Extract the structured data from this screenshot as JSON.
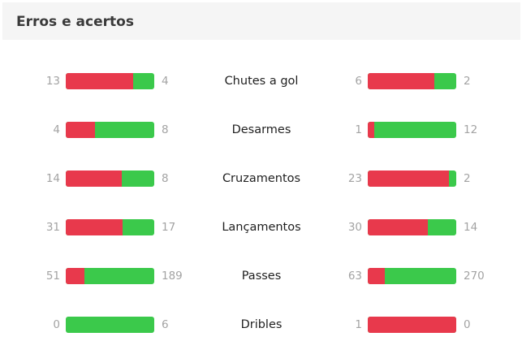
{
  "header": {
    "title": "Erros e acertos"
  },
  "colors": {
    "error": "#e8394c",
    "success": "#3bc94b"
  },
  "stats": [
    {
      "label": "Chutes a gol",
      "left": {
        "errors": "13",
        "hits": "4"
      },
      "right": {
        "errors": "6",
        "hits": "2"
      }
    },
    {
      "label": "Desarmes",
      "left": {
        "errors": "4",
        "hits": "8"
      },
      "right": {
        "errors": "1",
        "hits": "12"
      }
    },
    {
      "label": "Cruzamentos",
      "left": {
        "errors": "14",
        "hits": "8"
      },
      "right": {
        "errors": "23",
        "hits": "2"
      }
    },
    {
      "label": "Lançamentos",
      "left": {
        "errors": "31",
        "hits": "17"
      },
      "right": {
        "errors": "30",
        "hits": "14"
      }
    },
    {
      "label": "Passes",
      "left": {
        "errors": "51",
        "hits": "189"
      },
      "right": {
        "errors": "63",
        "hits": "270"
      }
    },
    {
      "label": "Dribles",
      "left": {
        "errors": "0",
        "hits": "6"
      },
      "right": {
        "errors": "1",
        "hits": "0"
      }
    }
  ]
}
